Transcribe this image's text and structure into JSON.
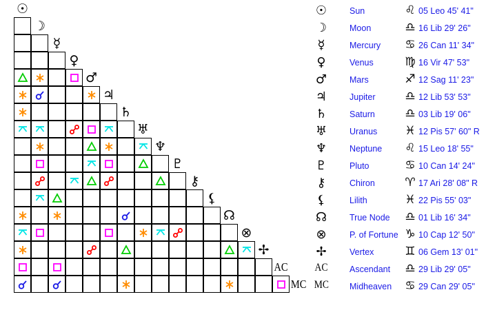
{
  "planets": [
    {
      "name": "Sun",
      "glyph": "☉",
      "sign_glyph": "♌",
      "position": "05 Leo 45' 41\""
    },
    {
      "name": "Moon",
      "glyph": "☽",
      "sign_glyph": "♎",
      "position": "16 Lib 29' 26\""
    },
    {
      "name": "Mercury",
      "glyph": "☿",
      "sign_glyph": "♋",
      "position": "26 Can 11' 34\""
    },
    {
      "name": "Venus",
      "glyph": "♀",
      "sign_glyph": "♍",
      "position": "16 Vir 47' 53\""
    },
    {
      "name": "Mars",
      "glyph": "♂",
      "sign_glyph": "♐",
      "position": "12 Sag 11' 23\""
    },
    {
      "name": "Jupiter",
      "glyph": "♃",
      "sign_glyph": "♎",
      "position": "12 Lib 53' 53\""
    },
    {
      "name": "Saturn",
      "glyph": "♄",
      "sign_glyph": "♎",
      "position": "03 Lib 19' 06\""
    },
    {
      "name": "Uranus",
      "glyph": "♅",
      "sign_glyph": "♓",
      "position": "12 Pis 57' 60\" R"
    },
    {
      "name": "Neptune",
      "glyph": "♆",
      "sign_glyph": "♌",
      "position": "15 Leo 18' 55\""
    },
    {
      "name": "Pluto",
      "glyph": "♇",
      "sign_glyph": "♋",
      "position": "10 Can 14' 24\""
    },
    {
      "name": "Chiron",
      "glyph": "⚷",
      "sign_glyph": "♈",
      "position": "17 Ari 28' 08\" R"
    },
    {
      "name": "Lilith",
      "glyph": "⚸",
      "sign_glyph": "♓",
      "position": "22 Pis 55' 03\""
    },
    {
      "name": "True Node",
      "glyph": "☊",
      "sign_glyph": "♎",
      "position": "01 Lib 16' 34\""
    },
    {
      "name": "P. of Fortune",
      "glyph": "⊗",
      "sign_glyph": "♑",
      "position": "10 Cap 12' 50\""
    },
    {
      "name": "Vertex",
      "glyph": "✢",
      "sign_glyph": "♊",
      "position": "06 Gem 13' 01\""
    },
    {
      "name": "Ascendant",
      "glyph": "AC",
      "sign_glyph": "♎",
      "position": "29 Lib 29' 05\""
    },
    {
      "name": "Midheaven",
      "glyph": "MC",
      "sign_glyph": "♋",
      "position": "29 Can 29' 05\""
    }
  ],
  "aspect_colors": {
    "conjunction": "#1a1ae6",
    "sextile": "#ff8c00",
    "square": "#ff00ff",
    "trine": "#00cc00",
    "opposition": "#ff0000",
    "quincunx": "#00e5e5"
  },
  "aspects": [
    [
      4,
      0,
      "trine"
    ],
    [
      4,
      1,
      "sextile"
    ],
    [
      4,
      3,
      "square"
    ],
    [
      5,
      0,
      "sextile"
    ],
    [
      5,
      1,
      "conjunction"
    ],
    [
      5,
      4,
      "sextile"
    ],
    [
      6,
      0,
      "sextile"
    ],
    [
      7,
      0,
      "quincunx"
    ],
    [
      7,
      1,
      "quincunx"
    ],
    [
      7,
      3,
      "opposition"
    ],
    [
      7,
      4,
      "square"
    ],
    [
      7,
      5,
      "quincunx"
    ],
    [
      8,
      1,
      "sextile"
    ],
    [
      8,
      4,
      "trine"
    ],
    [
      8,
      5,
      "sextile"
    ],
    [
      8,
      7,
      "quincunx"
    ],
    [
      9,
      1,
      "square"
    ],
    [
      9,
      4,
      "quincunx"
    ],
    [
      9,
      5,
      "square"
    ],
    [
      9,
      7,
      "trine"
    ],
    [
      10,
      1,
      "opposition"
    ],
    [
      10,
      3,
      "quincunx"
    ],
    [
      10,
      4,
      "trine"
    ],
    [
      10,
      5,
      "opposition"
    ],
    [
      10,
      8,
      "trine"
    ],
    [
      11,
      1,
      "quincunx"
    ],
    [
      11,
      2,
      "trine"
    ],
    [
      12,
      0,
      "sextile"
    ],
    [
      12,
      2,
      "sextile"
    ],
    [
      12,
      6,
      "conjunction"
    ],
    [
      13,
      0,
      "quincunx"
    ],
    [
      13,
      1,
      "square"
    ],
    [
      13,
      5,
      "square"
    ],
    [
      13,
      7,
      "sextile"
    ],
    [
      13,
      8,
      "quincunx"
    ],
    [
      13,
      9,
      "opposition"
    ],
    [
      14,
      0,
      "sextile"
    ],
    [
      14,
      4,
      "opposition"
    ],
    [
      14,
      6,
      "trine"
    ],
    [
      14,
      12,
      "trine"
    ],
    [
      14,
      13,
      "quincunx"
    ],
    [
      15,
      0,
      "square"
    ],
    [
      15,
      2,
      "square"
    ],
    [
      16,
      0,
      "conjunction"
    ],
    [
      16,
      2,
      "conjunction"
    ],
    [
      16,
      6,
      "sextile"
    ],
    [
      16,
      12,
      "sextile"
    ],
    [
      16,
      15,
      "square"
    ]
  ]
}
